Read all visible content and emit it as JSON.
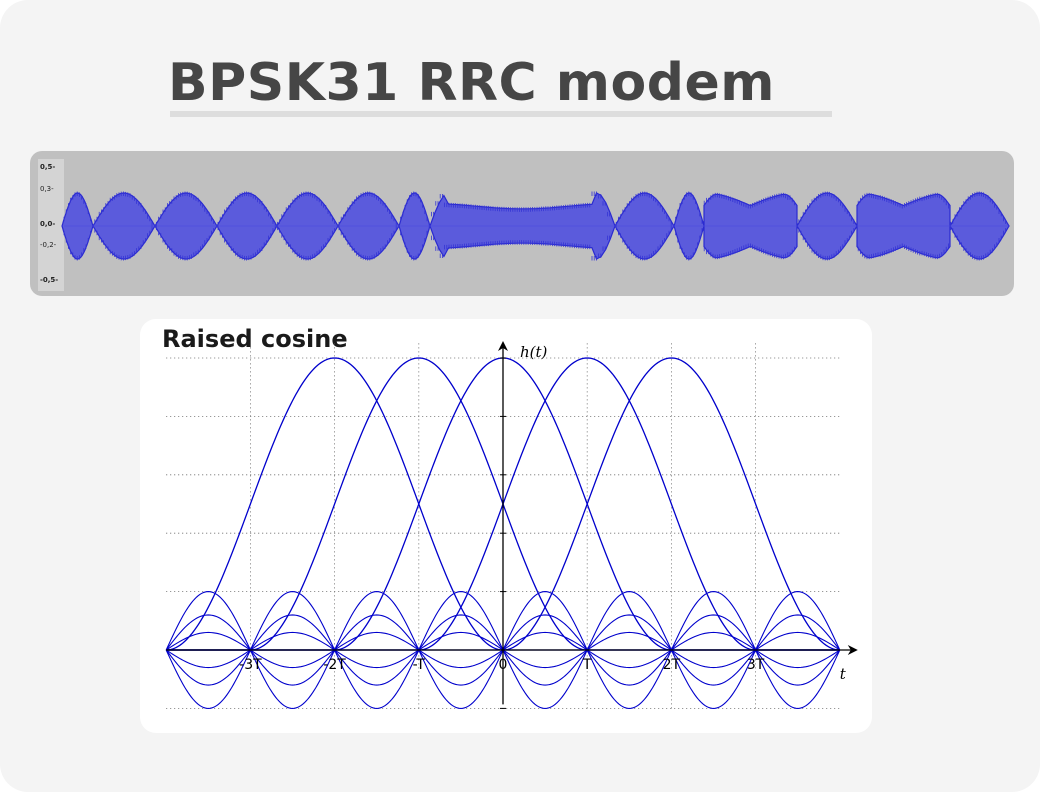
{
  "slide": {
    "title": "BPSK31 RRC modem"
  },
  "waveform": {
    "scale_labels": [
      {
        "text": "0,5-",
        "value": 0.5,
        "major": true
      },
      {
        "text": "0,3-",
        "value": 0.3,
        "major": false
      },
      {
        "text": "0,0-",
        "value": 0.0,
        "major": true
      },
      {
        "text": "-0,2-",
        "value": -0.2,
        "major": false
      },
      {
        "text": "-0,5-",
        "value": -0.5,
        "major": true
      }
    ],
    "envelope_color": "#5b5bdc",
    "edge_color": "#2a2ad0",
    "background_color": "#c0c0c0"
  },
  "raised_cosine": {
    "title": "Raised cosine",
    "y_axis_label": "h(t)",
    "x_axis_label": "t",
    "x_tick_labels": [
      "-3T",
      "-2T",
      "-T",
      "0",
      "T",
      "2T",
      "3T"
    ],
    "x_tick_values": [
      -3,
      -2,
      -1,
      0,
      1,
      2,
      3
    ],
    "pulse_centers": [
      -2,
      -1,
      0,
      1,
      2
    ],
    "curve_color": "#0000cc"
  }
}
